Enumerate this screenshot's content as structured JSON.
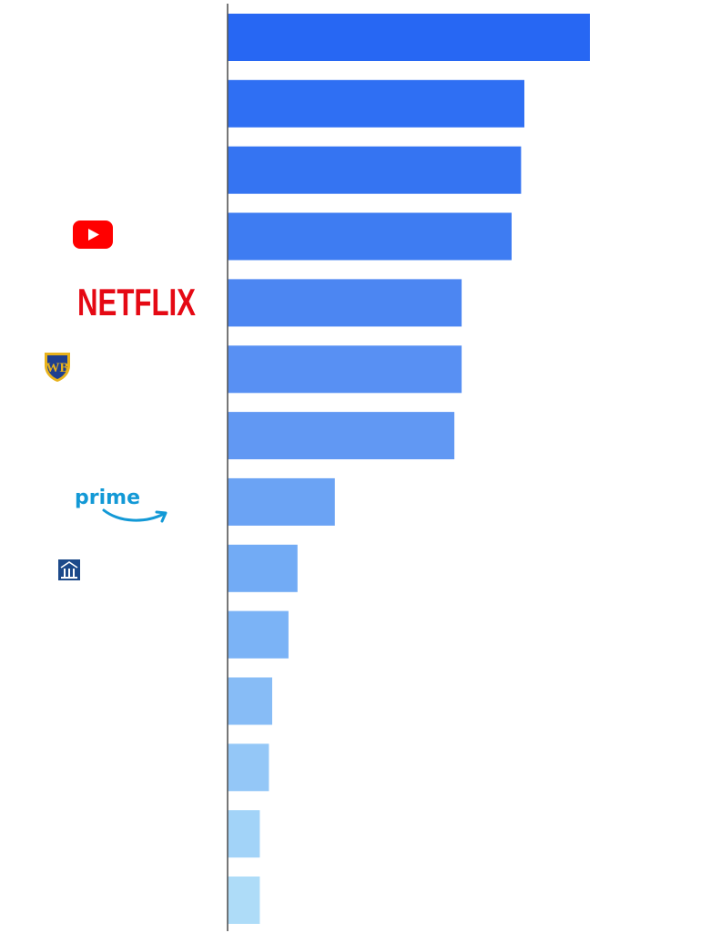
{
  "chart_data": {
    "type": "bar",
    "orientation": "horizontal",
    "axis": {
      "grid": false,
      "tick_labels": false
    },
    "categories": [
      {
        "logo": ""
      },
      {
        "logo": ""
      },
      {
        "logo": ""
      },
      {
        "logo": "youtube-logo"
      },
      {
        "logo": "netflix-logo",
        "logo_text": "NETFLIX"
      },
      {
        "logo": "warner-bros-logo",
        "logo_text": "WB"
      },
      {
        "logo": ""
      },
      {
        "logo": "prime-video-logo",
        "logo_text": "prime"
      },
      {
        "logo": "building-logo"
      },
      {
        "logo": ""
      },
      {
        "logo": ""
      },
      {
        "logo": ""
      },
      {
        "logo": ""
      },
      {
        "logo": ""
      }
    ],
    "values": [
      100,
      81.9,
      81,
      78.4,
      64.6,
      64.6,
      62.6,
      29.6,
      19.3,
      16.8,
      12.3,
      11.4,
      8.9,
      8.9
    ],
    "xlim": [
      0,
      100
    ],
    "colors": [
      "#2767f3",
      "#2f6ff3",
      "#3574f2",
      "#3e7cf2",
      "#4c86f2",
      "#5890f3",
      "#6198f3",
      "#6ba3f4",
      "#72abf5",
      "#7bb3f6",
      "#87bcf6",
      "#94c7f7",
      "#a2d3f8",
      "#aedcf8"
    ]
  },
  "logos": {
    "youtube_color": "#ff0000",
    "netflix_color": "#e50914",
    "wb_color": "#1f3f8f",
    "wb_gold": "#e8b21c",
    "prime_color": "#1399d6",
    "building_color": "#1d4a8a"
  }
}
